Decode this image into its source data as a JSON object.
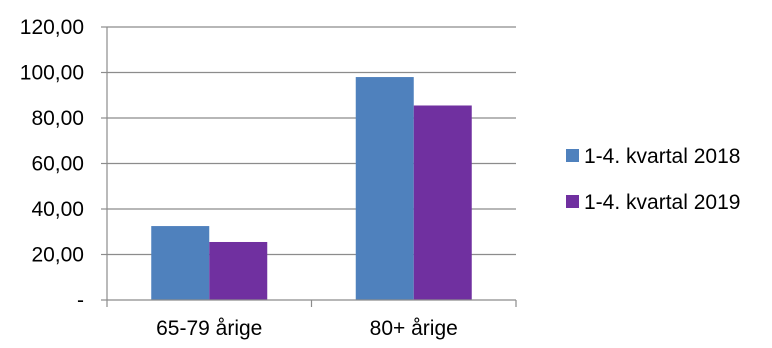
{
  "chart_data": {
    "type": "bar",
    "categories": [
      "65-79 årige",
      "80+ årige"
    ],
    "series": [
      {
        "name": "1-4. kvartal 2018",
        "values": [
          32.5,
          98.0
        ],
        "color": "#4f81bd"
      },
      {
        "name": "1-4. kvartal 2019",
        "values": [
          25.5,
          85.5
        ],
        "color": "#7030a0"
      }
    ],
    "y_ticks": [
      {
        "value": 0,
        "label": "-"
      },
      {
        "value": 20,
        "label": "20,00"
      },
      {
        "value": 40,
        "label": "40,00"
      },
      {
        "value": 60,
        "label": "60,00"
      },
      {
        "value": 80,
        "label": "80,00"
      },
      {
        "value": 100,
        "label": "100,00"
      },
      {
        "value": 120,
        "label": "120,00"
      }
    ],
    "ylim": [
      0,
      120
    ],
    "grid": true,
    "legend_position": "right"
  }
}
